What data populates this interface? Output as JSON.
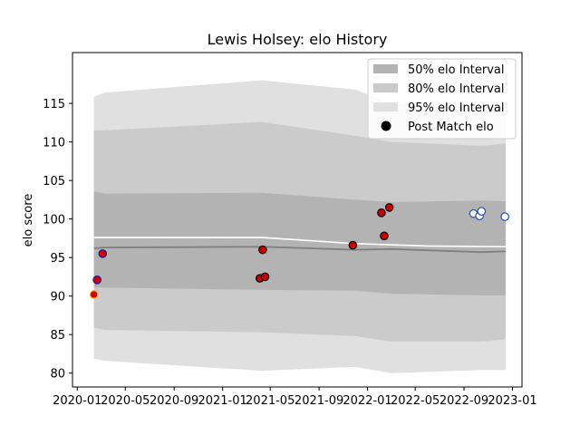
{
  "chart_data": {
    "type": "line",
    "title": "Lewis Holsey: elo History",
    "xlabel": "",
    "ylabel": "elo score",
    "xlim": [
      "2019-12-20",
      "2023-01-25"
    ],
    "ylim": [
      78.2,
      121.6
    ],
    "x_ticks": [
      "2020-01",
      "2020-05",
      "2020-09",
      "2021-01",
      "2021-05",
      "2021-09",
      "2022-01",
      "2022-05",
      "2022-09",
      "2023-01"
    ],
    "y_ticks": [
      80,
      85,
      90,
      95,
      100,
      105,
      110,
      115
    ],
    "legend_position": "top-right",
    "bands": [
      {
        "name": "95% elo Interval",
        "color": "#e0e0e0",
        "x": [
          "2020-02-12",
          "2020-03-10",
          "2021-04-10",
          "2021-12-01",
          "2022-03-01",
          "2022-10-15",
          "2022-12-15"
        ],
        "upper": [
          115.9,
          116.4,
          118.0,
          116.8,
          115.0,
          114.4,
          114.5
        ],
        "lower": [
          81.9,
          81.6,
          80.3,
          80.8,
          80.0,
          80.4,
          80.4
        ]
      },
      {
        "name": "80% elo Interval",
        "color": "#cbcbcb",
        "x": [
          "2020-02-12",
          "2020-03-10",
          "2021-04-10",
          "2021-12-01",
          "2022-03-01",
          "2022-10-15",
          "2022-12-15"
        ],
        "upper": [
          111.5,
          111.5,
          112.6,
          110.8,
          110.0,
          109.5,
          109.8
        ],
        "lower": [
          85.9,
          85.6,
          85.3,
          84.8,
          84.1,
          84.1,
          84.4
        ]
      },
      {
        "name": "50% elo Interval",
        "color": "#b3b3b3",
        "x": [
          "2020-02-12",
          "2020-03-10",
          "2021-04-10",
          "2021-12-01",
          "2022-03-01",
          "2022-10-15",
          "2022-12-15"
        ],
        "upper": [
          103.6,
          103.3,
          103.4,
          102.5,
          102.2,
          102.4,
          102.3
        ],
        "lower": [
          91.2,
          91.1,
          90.8,
          90.7,
          90.3,
          90.1,
          90.1
        ]
      }
    ],
    "mean_line": {
      "color": "#808080",
      "x": [
        "2020-02-12",
        "2020-03-10",
        "2021-04-10",
        "2021-12-01",
        "2022-03-01",
        "2022-10-15",
        "2022-12-15"
      ],
      "values": [
        96.2,
        96.3,
        96.4,
        96.0,
        96.1,
        95.7,
        95.8
      ]
    },
    "forecast_line": {
      "color": "#ffffff",
      "x": [
        "2020-02-12",
        "2021-04-10",
        "2021-12-01",
        "2022-06-01",
        "2022-12-15"
      ],
      "values": [
        97.6,
        97.6,
        96.8,
        96.5,
        96.4
      ]
    },
    "series": [
      {
        "name": "Post Match elo",
        "points": [
          {
            "x": "2020-02-12",
            "y": 90.2,
            "fill": "#cc0000",
            "edge": "#ffa500"
          },
          {
            "x": "2020-02-20",
            "y": 92.1,
            "fill": "#cc0000",
            "edge": "#1a1aa0"
          },
          {
            "x": "2020-03-05",
            "y": 95.5,
            "fill": "#cc0000",
            "edge": "#1a1aa0"
          },
          {
            "x": "2021-04-05",
            "y": 92.3,
            "fill": "#cc0000",
            "edge": "#000000"
          },
          {
            "x": "2021-04-12",
            "y": 96.0,
            "fill": "#cc0000",
            "edge": "#000000"
          },
          {
            "x": "2021-04-18",
            "y": 92.5,
            "fill": "#cc0000",
            "edge": "#000000"
          },
          {
            "x": "2021-11-25",
            "y": 96.6,
            "fill": "#cc0000",
            "edge": "#000000"
          },
          {
            "x": "2022-02-05",
            "y": 100.8,
            "fill": "#cc0000",
            "edge": "#000000"
          },
          {
            "x": "2022-02-12",
            "y": 97.8,
            "fill": "#cc0000",
            "edge": "#000000"
          },
          {
            "x": "2022-02-25",
            "y": 101.5,
            "fill": "#cc0000",
            "edge": "#000000"
          },
          {
            "x": "2022-09-25",
            "y": 100.7,
            "fill": "#ffffff",
            "edge": "#1f4fbf"
          },
          {
            "x": "2022-10-10",
            "y": 100.4,
            "fill": "#ffffff",
            "edge": "#1f4fbf"
          },
          {
            "x": "2022-10-15",
            "y": 101.0,
            "fill": "#ffffff",
            "edge": "#1f4fbf"
          },
          {
            "x": "2022-12-13",
            "y": 100.3,
            "fill": "#ffffff",
            "edge": "#1f4fbf"
          }
        ]
      }
    ],
    "legend": [
      {
        "label": "50% elo Interval",
        "kind": "patch",
        "color": "#b3b3b3"
      },
      {
        "label": "80% elo Interval",
        "kind": "patch",
        "color": "#cbcbcb"
      },
      {
        "label": "95% elo Interval",
        "kind": "patch",
        "color": "#e0e0e0"
      },
      {
        "label": "Post Match elo",
        "kind": "marker",
        "color": "#000000"
      }
    ]
  }
}
